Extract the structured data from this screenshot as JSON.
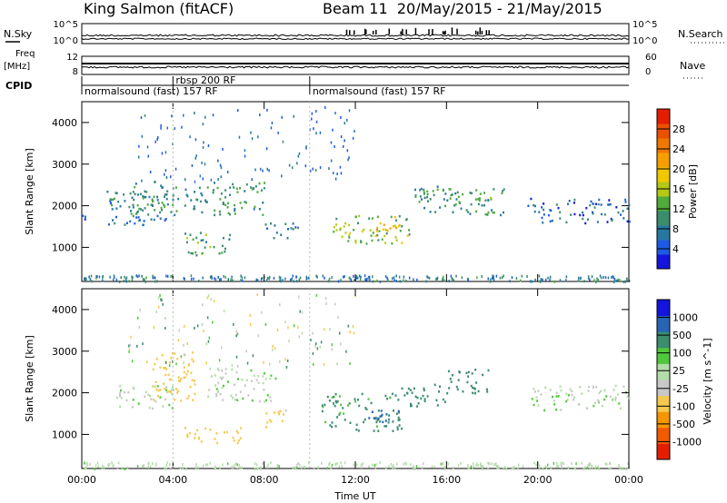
{
  "header": {
    "station": "King Salmon (fitACF)",
    "beam_info": "Beam 11  20/May/2015 - 21/May/2015"
  },
  "top_panels": {
    "nsky_label": "N.Sky",
    "nsearch_label": "N.Search",
    "freq_label_1": "Freq",
    "freq_label_2": "[MHz]",
    "nave_label": "Nave",
    "cpid_label": "CPID",
    "nsky_ticks": [
      "10^5",
      "10^0"
    ],
    "nsearch_ticks": [
      "10^5",
      "10^0"
    ],
    "freq_ticks": [
      "12",
      "8"
    ],
    "nave_ticks": [
      "60",
      "0"
    ]
  },
  "cpid_modes": [
    {
      "label": "normalsound (fast) 157 RF",
      "start_h": 0,
      "end_h": 4.0
    },
    {
      "label": "rbsp 200 RF",
      "start_h": 4.0,
      "end_h": 10.0
    },
    {
      "label": "normalsound (fast) 157 RF",
      "start_h": 10.0,
      "end_h": 24.0
    }
  ],
  "colors": {
    "power": [
      "#1414dc",
      "#1e5ae6",
      "#2878a0",
      "#3c8c6e",
      "#50aa3c",
      "#b4c814",
      "#f0c800",
      "#f5a000",
      "#f07800",
      "#eb5000",
      "#e61e00"
    ],
    "velocity": [
      "#e61e00",
      "#f05a00",
      "#f59600",
      "#f5c850",
      "#c8c8c8",
      "#b4dcaa",
      "#50c83c",
      "#3c8c6e",
      "#2864b4",
      "#1414dc"
    ]
  },
  "chart_data": [
    {
      "type": "heatmap",
      "name": "power",
      "ylabel": "Slant Range [km]",
      "xlabel": "Time UT",
      "ylim": [
        180,
        4500
      ],
      "x_ticks": [
        "00:00",
        "04:00",
        "08:00",
        "12:00",
        "16:00",
        "20:00",
        "00:00"
      ],
      "y_ticks": [
        1000,
        2000,
        3000,
        4000
      ],
      "colorbar": {
        "label": "Power [dB]",
        "ticks": [
          4,
          8,
          12,
          16,
          20,
          24,
          28
        ],
        "range": [
          0,
          32
        ]
      },
      "regions": [
        {
          "t0": 0.0,
          "t1": 4.0,
          "r0": 1550,
          "r1": 1800,
          "value": 6
        },
        {
          "t0": 1.0,
          "t1": 3.8,
          "r0": 1900,
          "r1": 2400,
          "value": 8
        },
        {
          "t0": 2.0,
          "t1": 8.0,
          "r0": 1800,
          "r1": 2600,
          "value": 10
        },
        {
          "t0": 4.5,
          "t1": 6.5,
          "r0": 800,
          "r1": 1400,
          "value": 12
        },
        {
          "t0": 8.0,
          "t1": 9.5,
          "r0": 1200,
          "r1": 1600,
          "value": 8
        },
        {
          "t0": 11.0,
          "t1": 14.5,
          "r0": 1100,
          "r1": 1800,
          "value": 14
        },
        {
          "t0": 12.5,
          "t1": 14.0,
          "r0": 1250,
          "r1": 1600,
          "value": 20
        },
        {
          "t0": 14.5,
          "t1": 18.5,
          "r0": 1800,
          "r1": 2500,
          "value": 10
        },
        {
          "t0": 16.5,
          "t1": 18.0,
          "r0": 2100,
          "r1": 2400,
          "value": 14
        },
        {
          "t0": 19.5,
          "t1": 24.0,
          "r0": 1600,
          "r1": 2200,
          "value": 6
        }
      ]
    },
    {
      "type": "heatmap",
      "name": "velocity",
      "ylabel": "Slant Range [km]",
      "xlabel": "Time UT",
      "ylim": [
        180,
        4500
      ],
      "x_ticks": [
        "00:00",
        "04:00",
        "08:00",
        "12:00",
        "16:00",
        "20:00",
        "00:00"
      ],
      "y_ticks": [
        1000,
        2000,
        3000,
        4000
      ],
      "colorbar": {
        "label": "Velocity [m s^-1]",
        "ticks": [
          "1000",
          "500",
          "100",
          "25",
          "-25",
          "-100",
          "-500",
          "-1000"
        ]
      },
      "regions": [
        {
          "t0": 1.5,
          "t1": 4.0,
          "r0": 1600,
          "r1": 2200,
          "value": 0
        },
        {
          "t0": 3.0,
          "t1": 5.0,
          "r0": 1800,
          "r1": 3000,
          "value": -300
        },
        {
          "t0": 4.5,
          "t1": 7.0,
          "r0": 800,
          "r1": 1200,
          "value": -200
        },
        {
          "t0": 5.5,
          "t1": 8.5,
          "r0": 1800,
          "r1": 2600,
          "value": 0
        },
        {
          "t0": 8.0,
          "t1": 9.0,
          "r0": 1200,
          "r1": 1700,
          "value": -150
        },
        {
          "t0": 10.5,
          "t1": 14.0,
          "r0": 1100,
          "r1": 2000,
          "value": 150
        },
        {
          "t0": 12.5,
          "t1": 14.0,
          "r0": 1300,
          "r1": 1600,
          "value": 800
        },
        {
          "t0": 14.0,
          "t1": 16.0,
          "r0": 1700,
          "r1": 2300,
          "value": 300
        },
        {
          "t0": 16.0,
          "t1": 18.0,
          "r0": 2000,
          "r1": 2600,
          "value": 200
        },
        {
          "t0": 19.5,
          "t1": 24.0,
          "r0": 1600,
          "r1": 2200,
          "value": 0
        }
      ]
    }
  ]
}
